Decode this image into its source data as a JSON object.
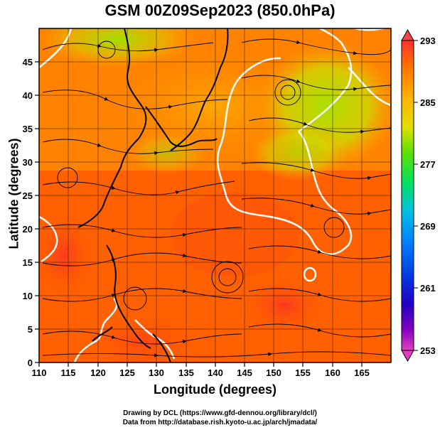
{
  "title": "GSM 00Z09Sep2023 (850.0hPa)",
  "x_axis": {
    "label": "Longitude (degrees)",
    "range": [
      110,
      170
    ],
    "ticks": [
      "110",
      "115",
      "120",
      "125",
      "130",
      "135",
      "140",
      "145",
      "150",
      "155",
      "160",
      "165"
    ]
  },
  "y_axis": {
    "label": "Latitude  (degrees)",
    "range": [
      0,
      50
    ],
    "ticks": [
      "0",
      "5",
      "10",
      "15",
      "20",
      "25",
      "30",
      "35",
      "40",
      "45"
    ]
  },
  "colorbar": {
    "labels": [
      "293",
      "285",
      "277",
      "269",
      "261",
      "253"
    ],
    "min": 253,
    "max": 293
  },
  "credits": {
    "line1": "Drawing by DCL (https://www.gfd-dennou.org/library/dcl/)",
    "line2": "Data from http://database.rish.kyoto-u.ac.jp/arch/jmadata/"
  },
  "colors": {
    "warm": "#ff5a00",
    "mid": "#ffa000",
    "cool": "#a0e600",
    "contour": "#ffffff",
    "coastline": "#000000"
  }
}
